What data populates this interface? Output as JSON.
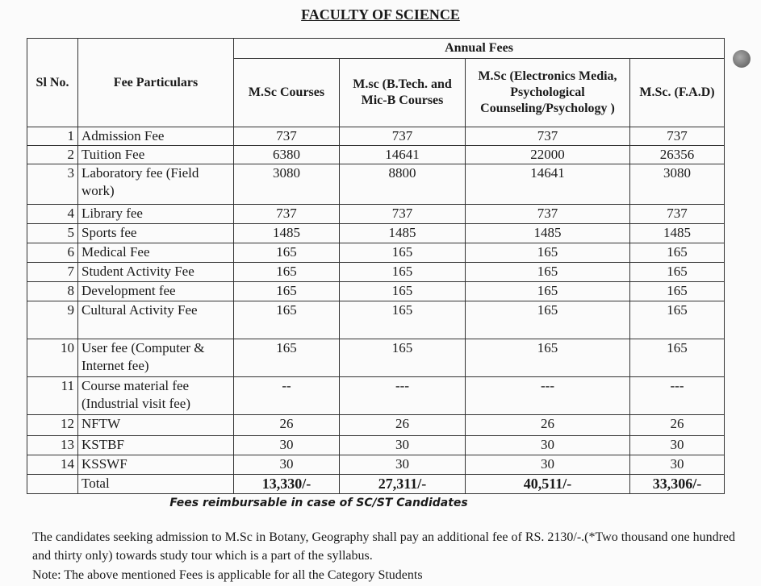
{
  "title": "FACULTY OF SCIENCE",
  "table": {
    "headers": {
      "sl": "Sl No.",
      "particulars": "Fee Particulars",
      "group": "Annual Fees",
      "columns": [
        "M.Sc Courses",
        "M.sc (B.Tech. and Mic-B Courses",
        "M.Sc (Electronics Media, Psychological Counseling/Psychology )",
        "M.Sc. (F.A.D)"
      ]
    },
    "rows": [
      {
        "sl": "1",
        "particular": "Admission Fee",
        "values": [
          "737",
          "737",
          "737",
          "737"
        ]
      },
      {
        "sl": "2",
        "particular": "Tuition Fee",
        "values": [
          "6380",
          "14641",
          "22000",
          "26356"
        ]
      },
      {
        "sl": "3",
        "particular": "Laboratory fee (Field work)",
        "values": [
          "3080",
          "8800",
          "14641",
          "3080"
        ]
      },
      {
        "sl": "4",
        "particular": "Library fee",
        "values": [
          "737",
          "737",
          "737",
          "737"
        ]
      },
      {
        "sl": "5",
        "particular": "Sports fee",
        "values": [
          "1485",
          "1485",
          "1485",
          "1485"
        ]
      },
      {
        "sl": "6",
        "particular": "Medical Fee",
        "values": [
          "165",
          "165",
          "165",
          "165"
        ]
      },
      {
        "sl": "7",
        "particular": "Student Activity Fee",
        "values": [
          "165",
          "165",
          "165",
          "165"
        ]
      },
      {
        "sl": "8",
        "particular": "Development fee",
        "values": [
          "165",
          "165",
          "165",
          "165"
        ]
      },
      {
        "sl": "9",
        "particular": "Cultural  Activity Fee",
        "values": [
          "165",
          "165",
          "165",
          "165"
        ]
      },
      {
        "sl": "10",
        "particular": "User fee (Computer & Internet fee)",
        "values": [
          "165",
          "165",
          "165",
          "165"
        ]
      },
      {
        "sl": "11",
        "particular": "Course material fee (Industrial visit fee)",
        "values": [
          "--",
          "---",
          "---",
          "---"
        ]
      },
      {
        "sl": "12",
        "particular": "NFTW",
        "values": [
          "26",
          "26",
          "26",
          "26"
        ]
      },
      {
        "sl": "13",
        "particular": "KSTBF",
        "values": [
          "30",
          "30",
          "30",
          "30"
        ]
      },
      {
        "sl": "14",
        "particular": "KSSWF",
        "values": [
          "30",
          "30",
          "30",
          "30"
        ]
      }
    ],
    "total": {
      "label": "Total",
      "values": [
        "13,330/-",
        "27,311/-",
        "40,511/-",
        "33,306/-"
      ]
    }
  },
  "reimbursable_note": "Fees reimbursable in case of SC/ST Candidates",
  "paragraph": "The candidates seeking admission to M.Sc in Botany, Geography  shall pay an additional fee of RS. 2130/-.(*Two thousand one hundred and thirty only) towards study tour which is a part of the syllabus.",
  "note": "Note: The above mentioned   Fees is applicable for all the Category Students"
}
